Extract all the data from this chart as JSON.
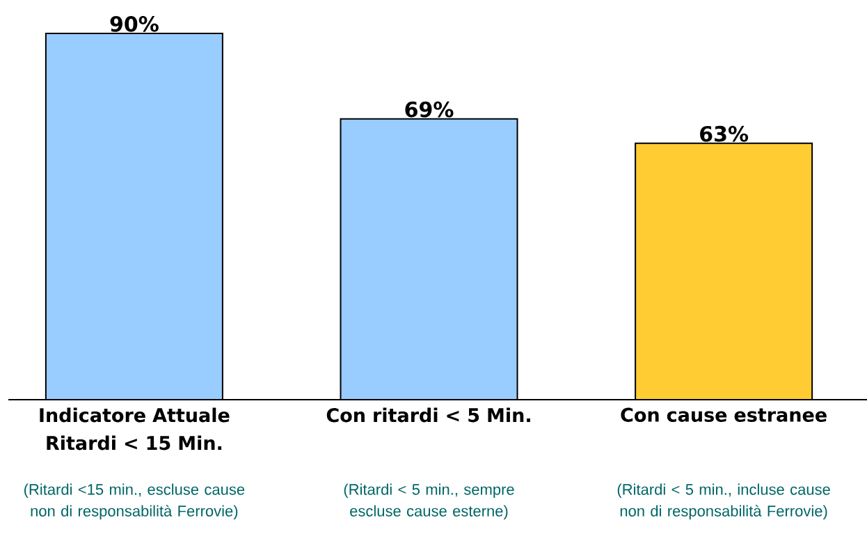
{
  "chart_data": {
    "type": "bar",
    "categories": [
      "Indicatore Attuale Ritardi < 15 Min.",
      "Con ritardi < 5 Min.",
      "Con cause estranee"
    ],
    "values": [
      90,
      69,
      63
    ],
    "value_labels": [
      "90%",
      "69%",
      "63%"
    ],
    "colors": [
      "#99ccff",
      "#99ccff",
      "#ffcc33"
    ],
    "annotations": [
      "(Ritardi <15 min., escluse cause non di responsabilità Ferrovie)",
      "(Ritardi < 5 min., sempre escluse cause esterne)",
      "(Ritardi < 5 min., incluse cause non di responsabilità Ferrovie)"
    ]
  }
}
